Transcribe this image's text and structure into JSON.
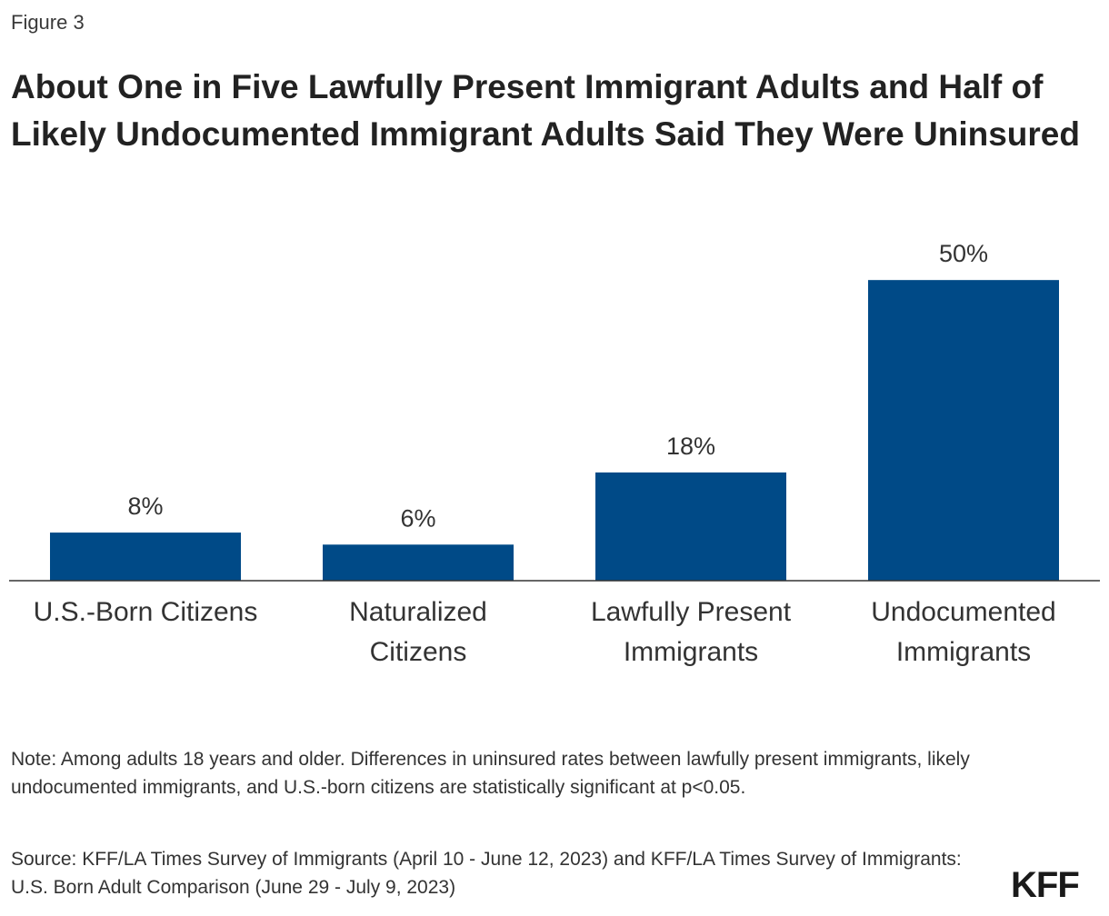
{
  "figure_label": "Figure 3",
  "title": "About One in Five Lawfully Present Immigrant Adults and Half of Likely Undocumented Immigrant Adults Said They Were Uninsured",
  "note": "Note: Among adults 18 years and older. Differences in uninsured rates between lawfully present immigrants, likely undocumented immigrants, and U.S.-born citizens are statistically significant at p<0.05.",
  "source": "Source: KFF/LA Times Survey of Immigrants (April 10 - June 12, 2023) and KFF/LA Times Survey of Immigrants: U.S. Born Adult Comparison (June 29 - July 9, 2023)",
  "logo": "KFF",
  "colors": {
    "bar": "#004a87",
    "axis": "#333333"
  },
  "chart_data": {
    "type": "bar",
    "categories": [
      [
        "U.S.-Born Citizens"
      ],
      [
        "Naturalized",
        "Citizens"
      ],
      [
        "Lawfully Present",
        "Immigrants"
      ],
      [
        "Undocumented",
        "Immigrants"
      ]
    ],
    "values": [
      8,
      6,
      18,
      50
    ],
    "data_labels": [
      "8%",
      "6%",
      "18%",
      "50%"
    ],
    "ylim": [
      0,
      60
    ],
    "grid": false,
    "xlabel": "",
    "ylabel": ""
  }
}
